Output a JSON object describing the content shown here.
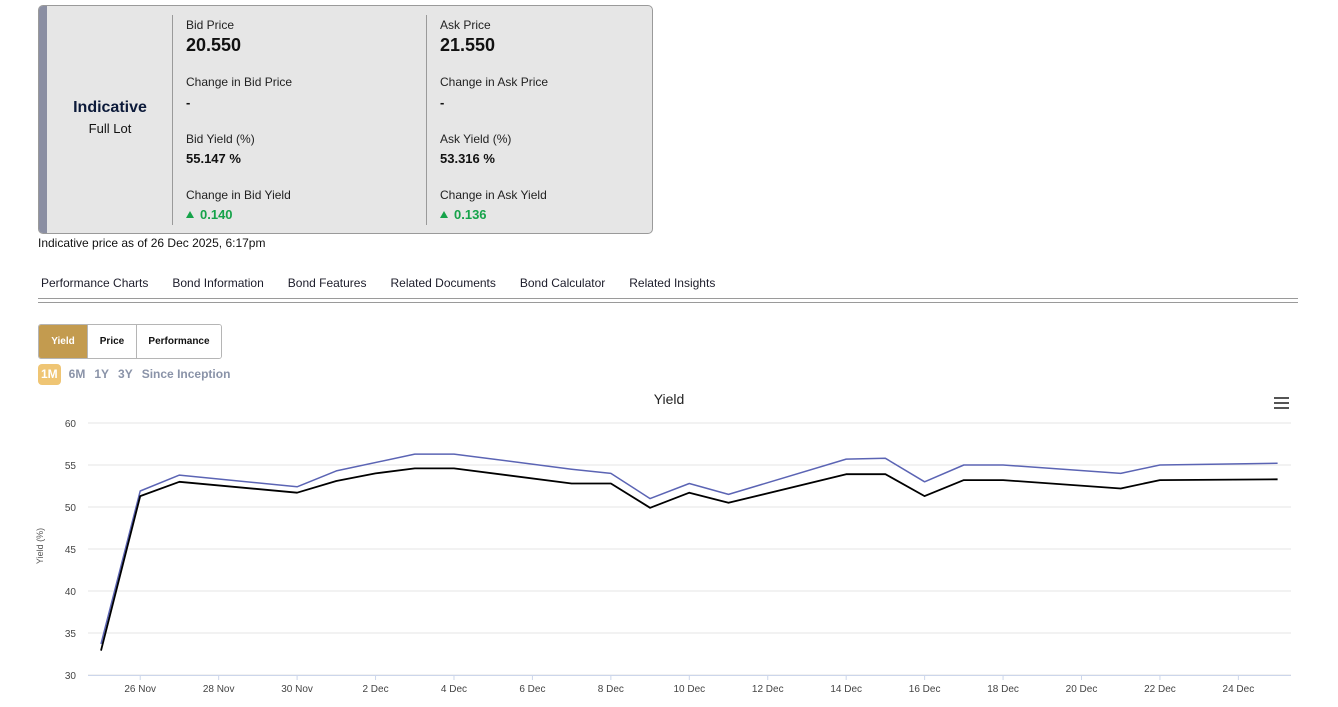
{
  "quote": {
    "type_title": "Indicative",
    "type_sub": "Full Lot",
    "bid": {
      "price_label": "Bid Price",
      "price_value": "20.550",
      "change_price_label": "Change in Bid Price",
      "change_price_value": "-",
      "yield_label": "Bid Yield (%)",
      "yield_value": "55.147 %",
      "change_yield_label": "Change in Bid Yield",
      "change_yield_value": "0.140",
      "change_yield_icon": "triangle-up-icon"
    },
    "ask": {
      "price_label": "Ask Price",
      "price_value": "21.550",
      "change_price_label": "Change in Ask Price",
      "change_price_value": "-",
      "yield_label": "Ask Yield (%)",
      "yield_value": "53.316 %",
      "change_yield_label": "Change in Ask Yield",
      "change_yield_value": "0.136",
      "change_yield_icon": "triangle-up-icon"
    },
    "positive_color": "#16a34a"
  },
  "as_of": "Indicative price as of 26 Dec 2025, 6:17pm",
  "tabs": [
    {
      "label": "Performance Charts"
    },
    {
      "label": "Bond Information"
    },
    {
      "label": "Bond Features"
    },
    {
      "label": "Related Documents"
    },
    {
      "label": "Bond Calculator"
    },
    {
      "label": "Related Insights"
    }
  ],
  "chart_toggles": [
    {
      "label": "Yield",
      "active": true
    },
    {
      "label": "Price",
      "active": false
    },
    {
      "label": "Performance",
      "active": false
    }
  ],
  "ranges": [
    {
      "label": "1M",
      "active": true
    },
    {
      "label": "6M",
      "active": false
    },
    {
      "label": "1Y",
      "active": false
    },
    {
      "label": "3Y",
      "active": false
    },
    {
      "label": "Since Inception",
      "active": false
    }
  ],
  "accent_color": "#c39b4f",
  "menu_icon": "hamburger-menu-icon",
  "chart_data": {
    "type": "line",
    "title": "Yield",
    "xlabel": "",
    "ylabel": "Yield (%)",
    "ylim": [
      30,
      60
    ],
    "yticks": [
      30,
      35,
      40,
      45,
      50,
      55,
      60
    ],
    "grid": true,
    "x_start": "2025-11-25",
    "x_ticks": [
      "26 Nov",
      "28 Nov",
      "30 Nov",
      "2 Dec",
      "4 Dec",
      "6 Dec",
      "8 Dec",
      "10 Dec",
      "12 Dec",
      "14 Dec",
      "16 Dec",
      "18 Dec",
      "20 Dec",
      "22 Dec",
      "24 Dec"
    ],
    "x_tick_days": [
      1,
      3,
      5,
      7,
      9,
      11,
      13,
      15,
      17,
      19,
      21,
      23,
      25,
      27,
      29
    ],
    "series": [
      {
        "color": "#5b64b4",
        "points": [
          [
            0,
            33.7
          ],
          [
            1,
            51.9
          ],
          [
            2,
            53.8
          ],
          [
            5,
            52.4
          ],
          [
            6,
            54.3
          ],
          [
            8,
            56.3
          ],
          [
            9,
            56.3
          ],
          [
            12,
            54.5
          ],
          [
            13,
            54.0
          ],
          [
            14,
            51.0
          ],
          [
            15,
            52.8
          ],
          [
            16,
            51.5
          ],
          [
            19,
            55.7
          ],
          [
            20,
            55.8
          ],
          [
            21,
            53.0
          ],
          [
            22,
            55.0
          ],
          [
            23,
            55.0
          ],
          [
            26,
            54.0
          ],
          [
            27,
            55.0
          ],
          [
            30,
            55.2
          ]
        ]
      },
      {
        "color": "#000000",
        "points": [
          [
            0,
            32.9
          ],
          [
            1,
            51.3
          ],
          [
            2,
            53.0
          ],
          [
            5,
            51.7
          ],
          [
            6,
            53.1
          ],
          [
            7,
            54.0
          ],
          [
            8,
            54.6
          ],
          [
            9,
            54.6
          ],
          [
            12,
            52.8
          ],
          [
            13,
            52.8
          ],
          [
            14,
            49.9
          ],
          [
            15,
            51.7
          ],
          [
            16,
            50.5
          ],
          [
            19,
            53.9
          ],
          [
            20,
            53.9
          ],
          [
            21,
            51.3
          ],
          [
            22,
            53.2
          ],
          [
            23,
            53.2
          ],
          [
            26,
            52.2
          ],
          [
            27,
            53.2
          ],
          [
            30,
            53.3
          ]
        ]
      }
    ]
  }
}
